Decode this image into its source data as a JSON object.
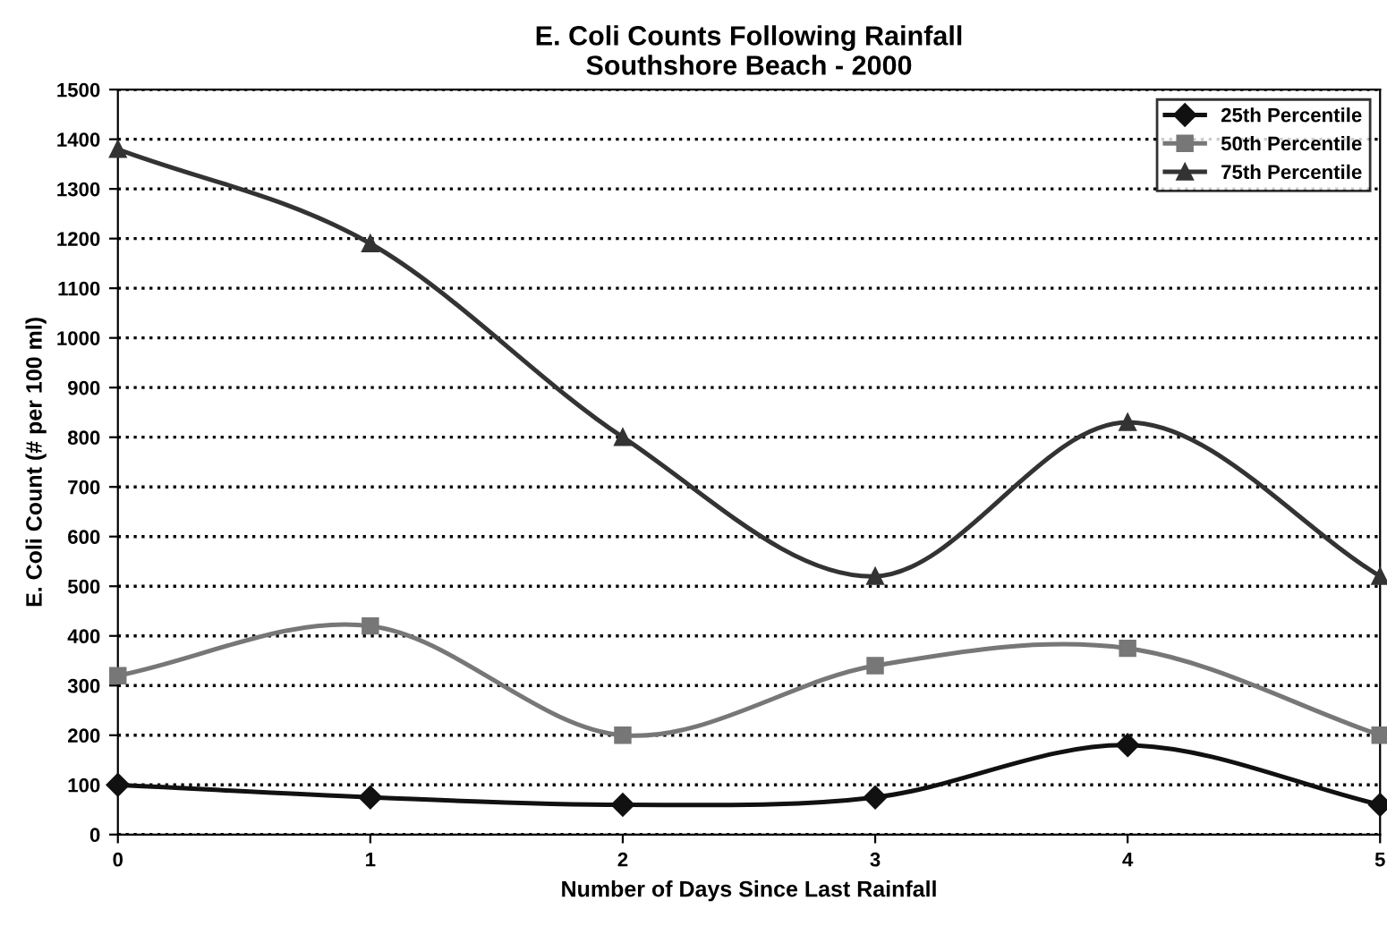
{
  "chart_data": {
    "type": "line",
    "title": "E. Coli Counts Following Rainfall\nSouthshore Beach - 2000",
    "xlabel": "Number of Days Since Last Rainfall",
    "ylabel": "E. Coli Count (# per 100 ml)",
    "x": [
      0,
      1,
      2,
      3,
      4,
      5
    ],
    "series": [
      {
        "name": "25th Percentile",
        "color": "#111111",
        "marker": "diamond",
        "values": [
          100,
          75,
          60,
          75,
          180,
          60
        ]
      },
      {
        "name": "50th Percentile",
        "color": "#777777",
        "marker": "square",
        "values": [
          320,
          420,
          200,
          340,
          375,
          200
        ]
      },
      {
        "name": "75th Percentile",
        "color": "#333333",
        "marker": "triangle",
        "values": [
          1380,
          1190,
          800,
          520,
          830,
          520
        ]
      }
    ],
    "xlim": [
      0,
      5
    ],
    "xticks": [
      0,
      1,
      2,
      3,
      4,
      5
    ],
    "ylim": [
      0,
      1500
    ],
    "yticks": [
      0,
      100,
      200,
      300,
      400,
      500,
      600,
      700,
      800,
      900,
      1000,
      1100,
      1200,
      1300,
      1400,
      1500
    ],
    "grid": "y",
    "legend": "top right",
    "line_style": "solid"
  }
}
